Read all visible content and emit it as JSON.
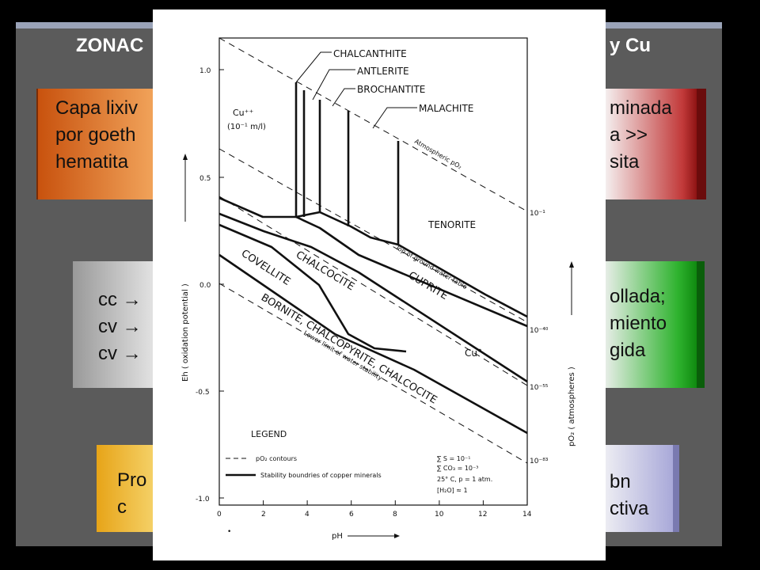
{
  "slide": {
    "title_left": "ZONAC",
    "title_right": "y Cu",
    "box_orange_lines": [
      "Capa lixiv",
      "por goeth",
      "hematita"
    ],
    "box_red_lines": [
      "minada",
      "a >>",
      "sita"
    ],
    "box_gray_lines": [
      "cc →",
      "cv →",
      "cv →"
    ],
    "box_green_lines": [
      "ollada;",
      "miento",
      "gida"
    ],
    "box_yellow_lines": [
      "Pro",
      "c"
    ],
    "box_purple_lines": [
      "bn",
      "ctiva"
    ]
  },
  "diagram": {
    "mineral_labels": {
      "chalcanthite": "CHALCANTHITE",
      "antlerite": "ANTLERITE",
      "brochantite": "BROCHANTITE",
      "malachite": "MALACHITE",
      "tenorite": "TENORITE",
      "chalcocite": "CHALCOCITE",
      "covellite": "COVELLITE",
      "cuprite": "CUPRITE",
      "cu_metal": "Cu°",
      "bornite_group": "BORNITE, CHALCOPYRITE, CHALCOCITE"
    },
    "cu_ion_label": "Cu⁺⁺",
    "cu_ion_conc": "(10⁻¹ m/l)",
    "atmospheric_label": "Atmospheric  pO₂",
    "ground_water_label": "Top of ground water table",
    "lower_limit_label": "Lower limit of water stability",
    "legend": {
      "title": "LEGEND",
      "dash_label": "pO₂ contours",
      "solid_label": "Stability boundries of copper minerals",
      "conditions": [
        "∑ S = 10⁻¹",
        "∑ CO₃ = 10⁻³",
        "25° C, p = 1 atm.",
        "[H₂O] ≈ 1"
      ]
    },
    "x_axis_label": "pH",
    "y_axis_label": "Eh ( oxidation potential )",
    "right_axis_label": "pO₂ ( atmospheres )",
    "x_ticks": [
      "0",
      "2",
      "4",
      "6",
      "8",
      "10",
      "12",
      "14"
    ],
    "y_ticks": [
      "1.0",
      "0.5",
      "0.0",
      "-0.5",
      "-1.0"
    ],
    "po2_labels": [
      "10⁻¹",
      "10⁻⁴⁰",
      "10⁻⁵⁵",
      "10⁻⁸³"
    ]
  }
}
